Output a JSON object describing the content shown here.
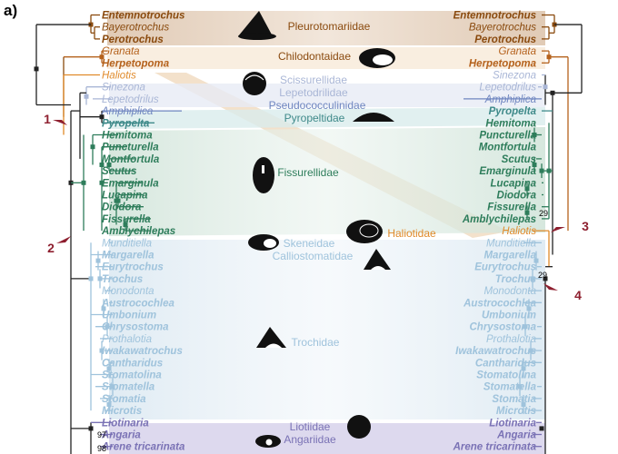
{
  "panel_label": "a)",
  "colors": {
    "pleuro": "#8a4a0e",
    "chilo": "#b5621c",
    "haliotis": "#e08a2a",
    "scisso": "#a9b6d6",
    "pyro": "#3f8a8a",
    "fissu": "#2e7d5b",
    "troch": "#9fc3dc",
    "liot": "#7a72b5",
    "arrow": "#8e1f2f"
  },
  "families": [
    {
      "name": "Pleurotomariidae",
      "color": "#8a4a0e",
      "icon": "pleurotomaria-shell-icon"
    },
    {
      "name": "Chilodontaidae",
      "color": "#8a4a0e",
      "icon": "chilodonta-shell-icon"
    },
    {
      "name": "Scissurellidae",
      "color": "#a9b6d6",
      "icon": "scissurella-shell-icon"
    },
    {
      "name": "Lepetodrilidae",
      "color": "#a9b6d6"
    },
    {
      "name": "Pseudococculinidae",
      "color": "#6f86c0"
    },
    {
      "name": "Pyropeltidae",
      "color": "#3f8a8a",
      "icon": "limpet-shell-icon"
    },
    {
      "name": "Fissurellidae",
      "color": "#2e7d5b",
      "icon": "keyhole-limpet-icon"
    },
    {
      "name": "Haliotidae",
      "color": "#e08a2a",
      "icon": "abalone-shell-icon"
    },
    {
      "name": "Skeneidae",
      "color": "#9fc3dc",
      "icon": "skenea-shell-icon"
    },
    {
      "name": "Calliostomatidae",
      "color": "#9fc3dc",
      "icon": "calliostoma-shell-icon"
    },
    {
      "name": "Trochidae",
      "color": "#9fc3dc",
      "icon": "trochus-shell-icon"
    },
    {
      "name": "Liotiidae",
      "color": "#7a72b5",
      "icon": "liotia-shell-icon"
    },
    {
      "name": "Angariidae",
      "color": "#7a72b5",
      "icon": "angaria-shell-icon"
    }
  ],
  "left_taxa": [
    {
      "name": "Entemnotrochus",
      "bold": true,
      "color": "#8a4a0e"
    },
    {
      "name": "Bayerotrochus",
      "bold": false,
      "color": "#8a4a0e"
    },
    {
      "name": "Perotrochus",
      "bold": true,
      "color": "#8a4a0e"
    },
    {
      "name": "Granata",
      "bold": false,
      "color": "#b5621c"
    },
    {
      "name": "Herpetopoma",
      "bold": true,
      "color": "#b5621c"
    },
    {
      "name": "Haliotis",
      "bold": false,
      "color": "#e08a2a"
    },
    {
      "name": "Sinezona",
      "bold": false,
      "color": "#a9b6d6"
    },
    {
      "name": "Lepetodrilus",
      "bold": false,
      "color": "#a9b6d6"
    },
    {
      "name": "Amphiplica",
      "bold": false,
      "color": "#6f86c0"
    },
    {
      "name": "Pyropelta",
      "bold": true,
      "color": "#3f8a8a"
    },
    {
      "name": "Hemitoma",
      "bold": true,
      "color": "#2e7d5b"
    },
    {
      "name": "Puncturella",
      "bold": true,
      "color": "#2e7d5b"
    },
    {
      "name": "Montfortula",
      "bold": true,
      "color": "#2e7d5b"
    },
    {
      "name": "Scutus",
      "bold": true,
      "color": "#2e7d5b"
    },
    {
      "name": "Emarginula",
      "bold": true,
      "color": "#2e7d5b"
    },
    {
      "name": "Lucapina",
      "bold": true,
      "color": "#2e7d5b"
    },
    {
      "name": "Diodora",
      "bold": true,
      "color": "#2e7d5b"
    },
    {
      "name": "Fissurella",
      "bold": true,
      "color": "#2e7d5b"
    },
    {
      "name": "Amblychilepas",
      "bold": true,
      "color": "#2e7d5b"
    },
    {
      "name": "Munditiella",
      "bold": false,
      "color": "#9fc3dc"
    },
    {
      "name": "Margarella",
      "bold": true,
      "color": "#9fc3dc"
    },
    {
      "name": "Eurytrochus",
      "bold": true,
      "color": "#9fc3dc"
    },
    {
      "name": "Trochus",
      "bold": true,
      "color": "#9fc3dc"
    },
    {
      "name": "Monodonta",
      "bold": false,
      "color": "#9fc3dc"
    },
    {
      "name": "Austrocochlea",
      "bold": true,
      "color": "#9fc3dc"
    },
    {
      "name": "Umbonium",
      "bold": true,
      "color": "#9fc3dc"
    },
    {
      "name": "Chrysostoma",
      "bold": true,
      "color": "#9fc3dc"
    },
    {
      "name": "Prothalotia",
      "bold": false,
      "color": "#9fc3dc"
    },
    {
      "name": "Iwakawatrochus",
      "bold": true,
      "color": "#9fc3dc"
    },
    {
      "name": "Cantharidus",
      "bold": true,
      "color": "#9fc3dc"
    },
    {
      "name": "Stomatolina",
      "bold": true,
      "color": "#9fc3dc"
    },
    {
      "name": "Stomatella",
      "bold": true,
      "color": "#9fc3dc"
    },
    {
      "name": "Stomatia",
      "bold": true,
      "color": "#9fc3dc"
    },
    {
      "name": "Microtis",
      "bold": true,
      "color": "#9fc3dc"
    },
    {
      "name": "Liotinaria",
      "bold": true,
      "color": "#7a72b5"
    },
    {
      "name": "Angaria",
      "bold": true,
      "color": "#7a72b5"
    },
    {
      "name": "Arene tricarinata",
      "bold": true,
      "color": "#7a72b5"
    }
  ],
  "right_taxa": [
    {
      "name": "Entemnotrochus",
      "bold": true,
      "color": "#8a4a0e"
    },
    {
      "name": "Bayerotrochus",
      "bold": false,
      "color": "#8a4a0e"
    },
    {
      "name": "Perotrochus",
      "bold": true,
      "color": "#8a4a0e"
    },
    {
      "name": "Granata",
      "bold": false,
      "color": "#b5621c"
    },
    {
      "name": "Herpetopoma",
      "bold": true,
      "color": "#b5621c"
    },
    {
      "name": "Sinezona",
      "bold": false,
      "color": "#a9b6d6"
    },
    {
      "name": "Lepetodrilus",
      "bold": false,
      "color": "#a9b6d6"
    },
    {
      "name": "Amphiplica",
      "bold": false,
      "color": "#6f86c0"
    },
    {
      "name": "Pyropelta",
      "bold": true,
      "color": "#3f8a8a"
    },
    {
      "name": "Hemitoma",
      "bold": true,
      "color": "#2e7d5b"
    },
    {
      "name": "Puncturella",
      "bold": true,
      "color": "#2e7d5b"
    },
    {
      "name": "Montfortula",
      "bold": true,
      "color": "#2e7d5b"
    },
    {
      "name": "Scutus",
      "bold": true,
      "color": "#2e7d5b"
    },
    {
      "name": "Emarginula",
      "bold": true,
      "color": "#2e7d5b"
    },
    {
      "name": "Lucapina",
      "bold": true,
      "color": "#2e7d5b"
    },
    {
      "name": "Diodora",
      "bold": true,
      "color": "#2e7d5b"
    },
    {
      "name": "Fissurella",
      "bold": true,
      "color": "#2e7d5b"
    },
    {
      "name": "Amblychilepas",
      "bold": true,
      "color": "#2e7d5b"
    },
    {
      "name": "Haliotis",
      "bold": false,
      "color": "#e08a2a"
    },
    {
      "name": "Munditiella",
      "bold": false,
      "color": "#9fc3dc"
    },
    {
      "name": "Margarella",
      "bold": true,
      "color": "#9fc3dc"
    },
    {
      "name": "Eurytrochus",
      "bold": true,
      "color": "#9fc3dc"
    },
    {
      "name": "Trochus",
      "bold": true,
      "color": "#9fc3dc"
    },
    {
      "name": "Monodonta",
      "bold": false,
      "color": "#9fc3dc"
    },
    {
      "name": "Austrocochlea",
      "bold": true,
      "color": "#9fc3dc"
    },
    {
      "name": "Umbonium",
      "bold": true,
      "color": "#9fc3dc"
    },
    {
      "name": "Chrysostoma",
      "bold": true,
      "color": "#9fc3dc"
    },
    {
      "name": "Prothalotia",
      "bold": false,
      "color": "#9fc3dc"
    },
    {
      "name": "Iwakawatrochus",
      "bold": true,
      "color": "#9fc3dc"
    },
    {
      "name": "Cantharidus",
      "bold": true,
      "color": "#9fc3dc"
    },
    {
      "name": "Stomatolina",
      "bold": true,
      "color": "#9fc3dc"
    },
    {
      "name": "Stomatella",
      "bold": true,
      "color": "#9fc3dc"
    },
    {
      "name": "Stomatia",
      "bold": true,
      "color": "#9fc3dc"
    },
    {
      "name": "Microtis",
      "bold": true,
      "color": "#9fc3dc"
    },
    {
      "name": "Liotinaria",
      "bold": true,
      "color": "#7a72b5"
    },
    {
      "name": "Angaria",
      "bold": true,
      "color": "#7a72b5"
    },
    {
      "name": "Arene tricarinata",
      "bold": true,
      "color": "#7a72b5"
    }
  ],
  "arrows": [
    "1",
    "2",
    "3",
    "4"
  ],
  "support_values": [
    "29",
    "29",
    "97",
    "98"
  ]
}
